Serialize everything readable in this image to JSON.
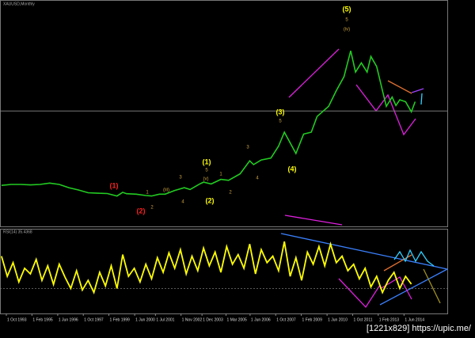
{
  "chart_data": [
    {
      "type": "line",
      "title": "XAUUSD,Monthly",
      "color": "#22cc22",
      "x": [
        1993.5,
        1994,
        1994.5,
        1995,
        1995.5,
        1996,
        1996.5,
        1997,
        1997.5,
        1998,
        1998.5,
        1999,
        1999.5,
        1999.8,
        2000,
        2000.5,
        2001,
        2001.3,
        2001.7,
        2002,
        2002.5,
        2003,
        2003.3,
        2003.8,
        2004,
        2004.4,
        2004.9,
        2005.3,
        2005.9,
        2006.4,
        2006.6,
        2007,
        2007.5,
        2007.9,
        2008.2,
        2008.8,
        2009.2,
        2009.6,
        2009.9,
        2010.5,
        2010.9,
        2011.3,
        2011.65,
        2011.9,
        2012.2,
        2012.5,
        2012.7,
        2013,
        2013.3,
        2013.5,
        2013.8,
        2014,
        2014.2,
        2014.5,
        2014.8,
        2015
      ],
      "values": [
        375,
        385,
        385,
        380,
        385,
        400,
        385,
        350,
        325,
        295,
        290,
        287,
        260,
        300,
        285,
        280,
        265,
        260,
        280,
        280,
        320,
        350,
        330,
        390,
        410,
        390,
        440,
        430,
        500,
        640,
        600,
        650,
        670,
        800,
        950,
        720,
        930,
        950,
        1120,
        1230,
        1400,
        1550,
        1830,
        1600,
        1700,
        1600,
        1770,
        1660,
        1400,
        1230,
        1330,
        1240,
        1300,
        1280,
        1170,
        1280
      ],
      "xlim": [
        1993.42,
        2016.67
      ],
      "ylim": [
        -60,
        2380
      ],
      "level_lines": [
        1180
      ],
      "annotations": [
        {
          "text": "(1)",
          "color": "#ff2020"
        },
        {
          "text": "(2)",
          "color": "#ff2020"
        },
        {
          "text": "(1)",
          "color": "#ffff00"
        },
        {
          "text": "(2)",
          "color": "#ffff00"
        },
        {
          "text": "(3)",
          "color": "#ffff00"
        },
        {
          "text": "(4)",
          "color": "#ffff00"
        },
        {
          "text": "(5)",
          "color": "#ffff00"
        },
        {
          "text": "5",
          "color": "#c8a040"
        },
        {
          "text": "5",
          "color": "#c8a040"
        },
        {
          "text": "4",
          "color": "#c8a040"
        },
        {
          "text": "3",
          "color": "#c8a040"
        },
        {
          "text": "2",
          "color": "#c8a040"
        },
        {
          "text": "1",
          "color": "#c8a040"
        },
        {
          "text": "1",
          "color": "#c8a040"
        },
        {
          "text": "2",
          "color": "#c8a040"
        },
        {
          "text": "3",
          "color": "#c8a040"
        },
        {
          "text": "4",
          "color": "#c8a040"
        },
        {
          "text": "5",
          "color": "#c8a040"
        },
        {
          "text": "(iv)",
          "color": "#c8a040"
        },
        {
          "text": "(iii)",
          "color": "#c8a040"
        },
        {
          "text": "(v)",
          "color": "#c8a040"
        }
      ]
    },
    {
      "type": "line",
      "title": "RSI(14) 35.4368",
      "color": "#ffff00",
      "x": [
        1993.5,
        1993.8,
        1994.1,
        1994.4,
        1994.7,
        1995.0,
        1995.3,
        1995.6,
        1995.9,
        1996.2,
        1996.5,
        1996.8,
        1997.1,
        1997.4,
        1997.7,
        1998.0,
        1998.3,
        1998.6,
        1998.9,
        1999.2,
        1999.5,
        1999.8,
        2000.1,
        2000.4,
        2000.7,
        2001.0,
        2001.3,
        2001.6,
        2001.9,
        2002.2,
        2002.5,
        2002.8,
        2003.1,
        2003.4,
        2003.7,
        2004.0,
        2004.3,
        2004.6,
        2004.9,
        2005.2,
        2005.5,
        2005.8,
        2006.1,
        2006.4,
        2006.7,
        2007.0,
        2007.3,
        2007.6,
        2007.9,
        2008.2,
        2008.5,
        2008.8,
        2009.1,
        2009.4,
        2009.7,
        2010.0,
        2010.3,
        2010.6,
        2010.9,
        2011.2,
        2011.5,
        2011.8,
        2012.1,
        2012.4,
        2012.7,
        2013.0,
        2013.3,
        2013.6,
        2013.9,
        2014.2,
        2014.5,
        2014.8
      ],
      "values": [
        70,
        45,
        62,
        38,
        55,
        48,
        66,
        40,
        58,
        35,
        60,
        44,
        30,
        52,
        28,
        40,
        25,
        50,
        33,
        58,
        30,
        72,
        45,
        55,
        38,
        60,
        42,
        68,
        50,
        74,
        55,
        78,
        48,
        70,
        52,
        80,
        58,
        75,
        50,
        82,
        60,
        72,
        55,
        85,
        48,
        78,
        62,
        70,
        52,
        88,
        45,
        68,
        40,
        75,
        60,
        82,
        58,
        85,
        62,
        70,
        52,
        60,
        42,
        55,
        32,
        45,
        25,
        40,
        50,
        30,
        45,
        35.4368
      ],
      "xlim": [
        1993.42,
        2016.67
      ],
      "ylim": [
        0,
        100
      ],
      "levels": [
        30
      ],
      "xticks": [
        {
          "value": 1993.75,
          "label": "1 Oct 1993"
        },
        {
          "value": 1995.08,
          "label": "1 Feb 1995"
        },
        {
          "value": 1996.42,
          "label": "1 Jun 1996"
        },
        {
          "value": 1997.75,
          "label": "1 Oct 1997"
        },
        {
          "value": 1999.08,
          "label": "1 Feb 1999"
        },
        {
          "value": 2000.42,
          "label": "1 Jun 2000"
        },
        {
          "value": 2001.5,
          "label": "1 Jul 2001"
        },
        {
          "value": 2002.83,
          "label": "1 Nov 2002"
        },
        {
          "value": 2003.92,
          "label": "1 Dec 2003"
        },
        {
          "value": 2005.17,
          "label": "1 Mar 2005"
        },
        {
          "value": 2006.42,
          "label": "1 Jun 2006"
        },
        {
          "value": 2007.75,
          "label": "1 Oct 2007"
        },
        {
          "value": 2009.08,
          "label": "1 Feb 2009"
        },
        {
          "value": 2010.42,
          "label": "1 Jun 2010"
        },
        {
          "value": 2011.75,
          "label": "1 Oct 2011"
        },
        {
          "value": 2013.08,
          "label": "1 Feb 2013"
        },
        {
          "value": 2014.42,
          "label": "1 Jun 2014"
        }
      ]
    }
  ],
  "watermark": "[1221x829] https://upic.me/"
}
